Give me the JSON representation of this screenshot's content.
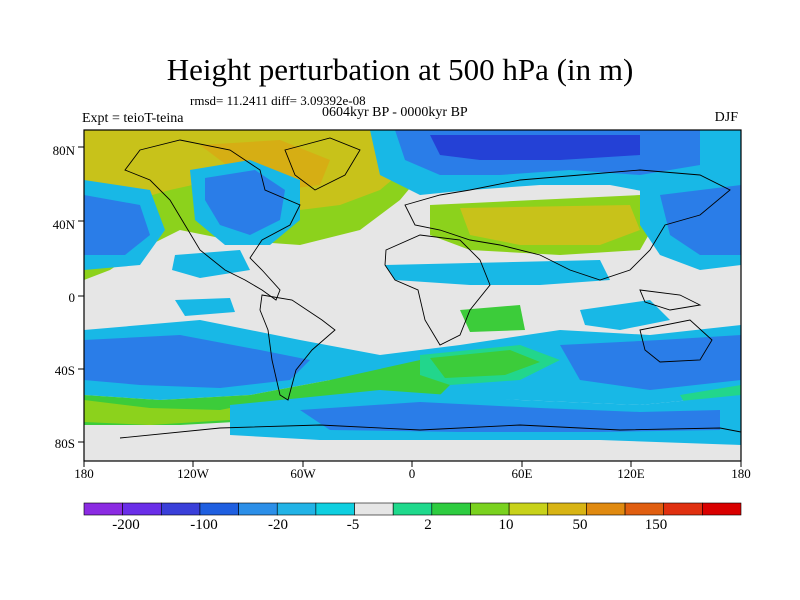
{
  "title": "Height perturbation at 500 hPa (in m)",
  "stats": "rmsd= 11.2411 diff= 3.09392e-08",
  "period": "0604kyr BP - 0000kyr BP",
  "experiment": "Expt = teioT-teina",
  "season": "DJF",
  "axes": {
    "lat_labels": [
      "80N",
      "40N",
      "0",
      "40S",
      "80S"
    ],
    "lon_labels": [
      "180",
      "120W",
      "60W",
      "0",
      "60E",
      "120E",
      "180"
    ]
  },
  "colorbar": {
    "labels": [
      "-200",
      "-100",
      "-20",
      "-5",
      "2",
      "10",
      "50",
      "150"
    ],
    "colors": [
      "#8b2be2",
      "#6a2ee8",
      "#3a3fd9",
      "#1f5fe0",
      "#2c8fe8",
      "#22b3e6",
      "#0fcfe0",
      "#e6e6e6",
      "#1fd98c",
      "#2ecc40",
      "#7ad21f",
      "#c8d21a",
      "#d8b414",
      "#e08a10",
      "#e05e10",
      "#e03010",
      "#d90000"
    ]
  },
  "palette": {
    "land_outline": "#000000",
    "frame": "#000000",
    "neutral": "#e6e6e6",
    "deep_blue": "#2441d6",
    "blue": "#2a7de8",
    "light_blue": "#18b8e6",
    "cyan": "#12d0e0",
    "teal_green": "#22d68c",
    "green": "#3ccc3a",
    "lime": "#8cd21c",
    "olive": "#c8c21a",
    "gold": "#d6ae14"
  }
}
